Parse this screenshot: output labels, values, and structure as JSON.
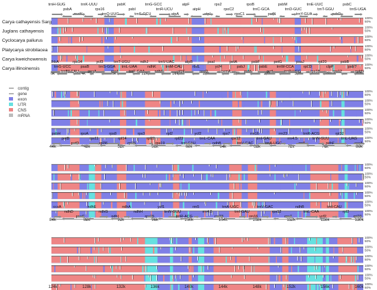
{
  "species": [
    "Carya cathayensis Sarg",
    "Juglans cathayensis",
    "Cyclocarya paliurus",
    "Platycarya strobilacea",
    "Carya kweichowensis",
    "Carya illinoinensis"
  ],
  "legend": [
    {
      "label": "contig",
      "color": "#9a9a9a"
    },
    {
      "label": "gene",
      "color": "#9a9a9a"
    },
    {
      "label": "exon",
      "color": "#7f7fe6"
    },
    {
      "label": "UTR",
      "color": "#66e0e0"
    },
    {
      "label": "CNS",
      "color": "#ee8585"
    },
    {
      "label": "mRNA",
      "color": "#bbbbbb"
    }
  ],
  "colors": {
    "exon": "#7f7fe6",
    "utr": "#66e0e0",
    "cns": "#ee8585",
    "bg": "#f0f0f0",
    "line": "#222222"
  },
  "y_tick_labels": [
    "100%",
    "50%"
  ],
  "panels": [
    {
      "ticks": [
        "0k",
        "4k",
        "8k",
        "12k",
        "16k",
        "20k",
        "24k",
        "28k",
        "32k",
        "36k",
        "40k"
      ],
      "gene_labels": [
        "trnH-GUG",
        "psbA",
        "matK",
        "trnK-UUU",
        "rps16",
        "trnQ-UUG",
        "psbK",
        "psbI",
        "trnS-GCU",
        "trnG-GCC",
        "trnR-UCU",
        "atpA",
        "atpF",
        "atpH",
        "atpI",
        "rps2",
        "rpoC2",
        "rpoC1",
        "rpoB",
        "trnC-GCA",
        "petN",
        "psbM",
        "trnD-GUC",
        "trnY-GUA",
        "trnE-UUC",
        "trnT-GGU",
        "psbD",
        "psbC",
        "trnS-UGA"
      ]
    },
    {
      "ticks": [
        "44k",
        "48k",
        "52k",
        "56k",
        "60k",
        "64k",
        "68k",
        "72k",
        "76k",
        "80k"
      ],
      "gene_labels": [
        "lhbA",
        "trnG-UCC",
        "trnfM-CAU",
        "rps14",
        "psaB",
        "psaA",
        "ycf3",
        "trnS-GGA",
        "rps4",
        "trnT-UGU",
        "trnL-UAA",
        "trnF-GAA",
        "ndhJ",
        "ndhK",
        "ndhC",
        "trnV-UAC",
        "trnM-CAU",
        "atpE",
        "atpB",
        "rbcL",
        "accD",
        "psaI",
        "ycf4",
        "cemA",
        "petA",
        "psbJ",
        "psbL",
        "psbF",
        "psbE",
        "petL",
        "petG",
        "trnW-CCA",
        "trnP-UGG",
        "psaJ",
        "rpl33",
        "rps18",
        "rpl20",
        "clpP",
        "rps12",
        "psbB",
        "psbT",
        "psbN"
      ]
    },
    {
      "ticks": [
        "84k",
        "88k",
        "92k",
        "96k",
        "100k",
        "104k",
        "108k",
        "112k",
        "116k",
        "120k"
      ],
      "gene_labels": [
        "psbH",
        "petB",
        "petD",
        "rpoA",
        "rps11",
        "rpl36",
        "rps8",
        "rpl14",
        "rpl16",
        "rps3",
        "rpl22",
        "rps19",
        "rpl2",
        "rpl23",
        "trnI-CAU",
        "ycf2",
        "trnL-CAA",
        "ndhB",
        "rps7",
        "rps12",
        "trnV-GAC",
        "rrn16",
        "trnI-GAU",
        "trnA-UGC",
        "rrn23",
        "rrn4.5",
        "rrn5",
        "trnR-ACG",
        "trnN-GUU",
        "ndhF",
        "rpl32",
        "trnL-UAG",
        "ccsA"
      ]
    },
    {
      "ticks": [
        "124k",
        "128k",
        "132k",
        "136k",
        "140k",
        "144k",
        "148k",
        "152k",
        "156k",
        "160k"
      ],
      "gene_labels": [
        "ccsA",
        "ndhD",
        "psaC",
        "ndhE",
        "ndhG",
        "ndhI",
        "ndhA",
        "ndhH",
        "rps15",
        "ycf1",
        "trnN-GUU",
        "trnR-ACG",
        "rrn5",
        "rrn4.5",
        "rrn23",
        "trnA-UGC",
        "trnI-GAU",
        "rrn16",
        "trnV-GAC",
        "rps12",
        "rps7",
        "ndhB",
        "trnL-CAA",
        "ycf2",
        "trnI-CAU",
        "rpl2",
        "rpl23"
      ]
    }
  ]
}
